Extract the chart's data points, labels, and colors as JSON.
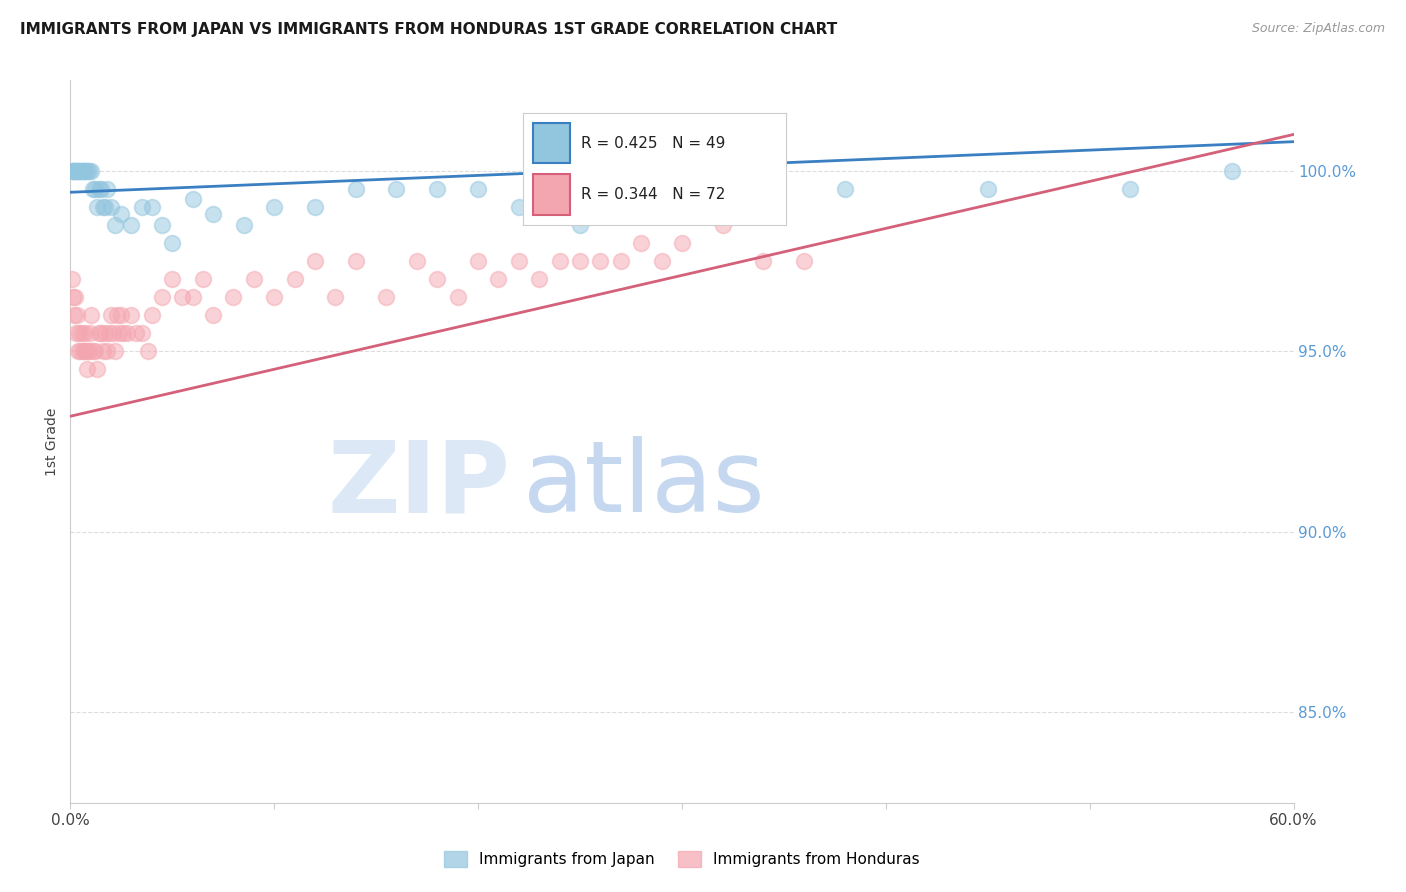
{
  "title": "IMMIGRANTS FROM JAPAN VS IMMIGRANTS FROM HONDURAS 1ST GRADE CORRELATION CHART",
  "source": "Source: ZipAtlas.com",
  "ylabel_left": "1st Grade",
  "right_yticks": [
    85.0,
    90.0,
    95.0,
    100.0
  ],
  "legend_label_japan": "Immigrants from Japan",
  "legend_label_honduras": "Immigrants from Honduras",
  "japan_R": 0.425,
  "japan_N": 49,
  "honduras_R": 0.344,
  "honduras_N": 72,
  "japan_color": "#92c5de",
  "honduras_color": "#f4a6b0",
  "japan_line_color": "#3a7fc1",
  "honduras_line_color": "#d4607a",
  "ylim_min": 82.5,
  "ylim_max": 102.5,
  "xlim_min": 0,
  "xlim_max": 60,
  "japan_x": [
    0.1,
    0.15,
    0.2,
    0.25,
    0.3,
    0.35,
    0.4,
    0.45,
    0.5,
    0.55,
    0.6,
    0.65,
    0.7,
    0.8,
    0.9,
    1.0,
    1.1,
    1.2,
    1.3,
    1.4,
    1.5,
    1.6,
    1.7,
    1.8,
    2.0,
    2.2,
    2.5,
    3.0,
    3.5,
    4.0,
    4.5,
    5.0,
    6.0,
    7.0,
    8.5,
    10.0,
    12.0,
    14.0,
    16.0,
    18.0,
    20.0,
    22.0,
    25.0,
    28.0,
    32.0,
    38.0,
    45.0,
    52.0,
    57.0
  ],
  "japan_y": [
    100.0,
    100.0,
    100.0,
    100.0,
    100.0,
    100.0,
    100.0,
    100.0,
    100.0,
    100.0,
    100.0,
    100.0,
    100.0,
    100.0,
    100.0,
    100.0,
    99.5,
    99.5,
    99.0,
    99.5,
    99.5,
    99.0,
    99.0,
    99.5,
    99.0,
    98.5,
    98.8,
    98.5,
    99.0,
    99.0,
    98.5,
    98.0,
    99.2,
    98.8,
    98.5,
    99.0,
    99.0,
    99.5,
    99.5,
    99.5,
    99.5,
    99.0,
    98.5,
    99.5,
    99.8,
    99.5,
    99.5,
    99.5,
    100.0
  ],
  "honduras_x": [
    0.1,
    0.15,
    0.2,
    0.25,
    0.3,
    0.35,
    0.4,
    0.45,
    0.5,
    0.55,
    0.6,
    0.65,
    0.7,
    0.75,
    0.8,
    0.85,
    0.9,
    0.95,
    1.0,
    1.1,
    1.2,
    1.3,
    1.4,
    1.5,
    1.6,
    1.7,
    1.8,
    1.9,
    2.0,
    2.1,
    2.2,
    2.3,
    2.4,
    2.5,
    2.6,
    2.8,
    3.0,
    3.2,
    3.5,
    3.8,
    4.0,
    4.5,
    5.0,
    5.5,
    6.0,
    6.5,
    7.0,
    8.0,
    9.0,
    10.0,
    11.0,
    12.0,
    13.0,
    14.0,
    15.5,
    17.0,
    18.0,
    19.0,
    20.0,
    21.0,
    22.0,
    23.0,
    24.0,
    25.0,
    26.0,
    27.0,
    28.0,
    29.0,
    30.0,
    32.0,
    34.0,
    36.0
  ],
  "honduras_y": [
    97.0,
    96.5,
    96.0,
    96.5,
    95.5,
    96.0,
    95.0,
    95.5,
    95.0,
    95.5,
    95.0,
    95.0,
    95.5,
    95.0,
    94.5,
    95.0,
    95.0,
    95.5,
    96.0,
    95.0,
    95.0,
    94.5,
    95.5,
    95.5,
    95.0,
    95.5,
    95.0,
    95.5,
    96.0,
    95.5,
    95.0,
    96.0,
    95.5,
    96.0,
    95.5,
    95.5,
    96.0,
    95.5,
    95.5,
    95.0,
    96.0,
    96.5,
    97.0,
    96.5,
    96.5,
    97.0,
    96.0,
    96.5,
    97.0,
    96.5,
    97.0,
    97.5,
    96.5,
    97.5,
    96.5,
    97.5,
    97.0,
    96.5,
    97.5,
    97.0,
    97.5,
    97.0,
    97.5,
    97.5,
    97.5,
    97.5,
    98.0,
    97.5,
    98.0,
    98.5,
    97.5,
    97.5
  ],
  "background_color": "#ffffff",
  "grid_color": "#dddddd",
  "watermark_zip_color": "#dce8f5",
  "watermark_atlas_color": "#c5d8ef"
}
